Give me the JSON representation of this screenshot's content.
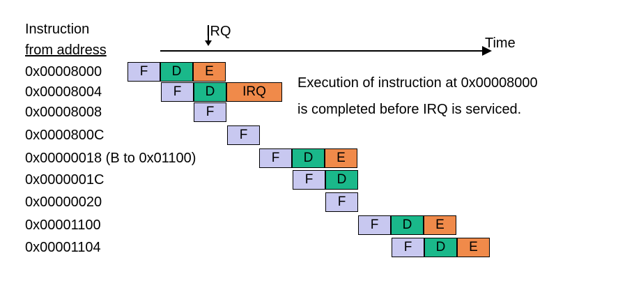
{
  "header": {
    "line1": "Instruction",
    "line2": "from address"
  },
  "timeline": {
    "irq_label": "IRQ",
    "time_label": "Time"
  },
  "rows": [
    {
      "address": "0x00008000",
      "stages": [
        "F",
        "D",
        "E"
      ]
    },
    {
      "address": "0x00008004",
      "stages": [
        "F",
        "D",
        "IRQ"
      ]
    },
    {
      "address": "0x00008008",
      "stages": [
        "F"
      ]
    },
    {
      "address": "0x0000800C",
      "stages": [
        "F"
      ]
    },
    {
      "address": "0x00000018 (B to 0x01100)",
      "stages": [
        "F",
        "D",
        "E"
      ]
    },
    {
      "address": "0x0000001C",
      "stages": [
        "F",
        "D"
      ]
    },
    {
      "address": "0x00000020",
      "stages": [
        "F"
      ]
    },
    {
      "address": "0x00001100",
      "stages": [
        "F",
        "D",
        "E"
      ]
    },
    {
      "address": "0x00001104",
      "stages": [
        "F",
        "D",
        "E"
      ]
    }
  ],
  "note": {
    "line1": "Execution of instruction at 0x00008000",
    "line2": "is completed before IRQ is serviced."
  },
  "colors": {
    "fetch": "#c8c8f0",
    "decode": "#1ab88a",
    "execute": "#f08a4a"
  }
}
